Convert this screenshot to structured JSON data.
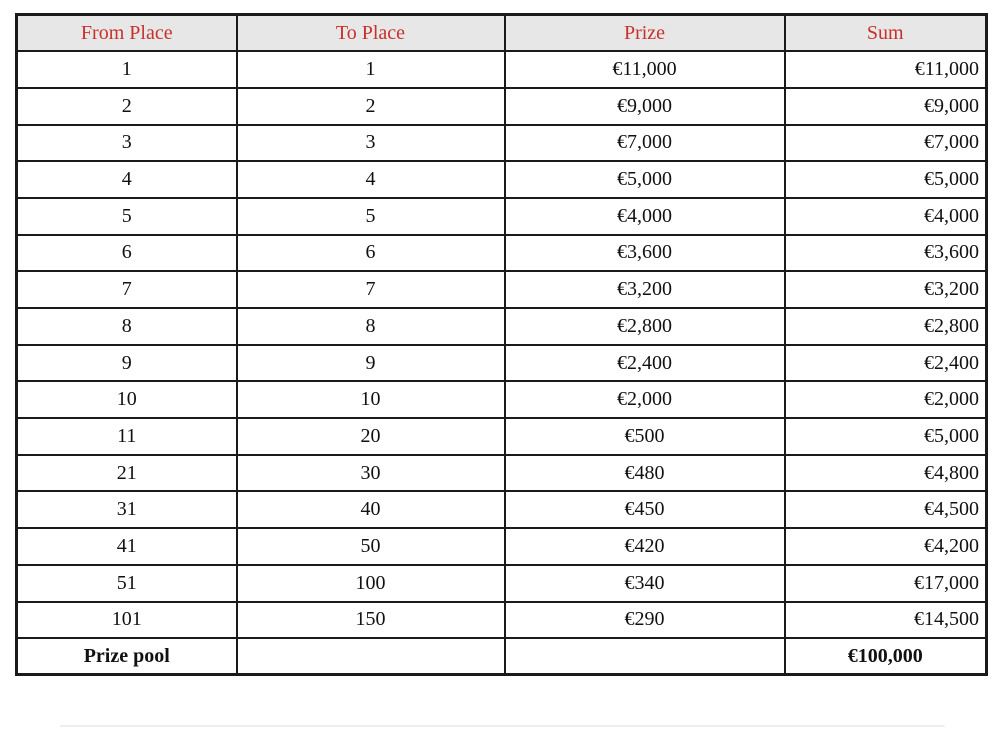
{
  "table": {
    "column_keys": [
      "from-place",
      "to-place",
      "prize",
      "sum"
    ],
    "headers": [
      "From Place",
      "To Place",
      "Prize",
      "Sum"
    ],
    "rows": [
      [
        "1",
        "1",
        "€11,000",
        "€11,000"
      ],
      [
        "2",
        "2",
        "€9,000",
        "€9,000"
      ],
      [
        "3",
        "3",
        "€7,000",
        "€7,000"
      ],
      [
        "4",
        "4",
        "€5,000",
        "€5,000"
      ],
      [
        "5",
        "5",
        "€4,000",
        "€4,000"
      ],
      [
        "6",
        "6",
        "€3,600",
        "€3,600"
      ],
      [
        "7",
        "7",
        "€3,200",
        "€3,200"
      ],
      [
        "8",
        "8",
        "€2,800",
        "€2,800"
      ],
      [
        "9",
        "9",
        "€2,400",
        "€2,400"
      ],
      [
        "10",
        "10",
        "€2,000",
        "€2,000"
      ],
      [
        "11",
        "20",
        "€500",
        "€5,000"
      ],
      [
        "21",
        "30",
        "€480",
        "€4,800"
      ],
      [
        "31",
        "40",
        "€450",
        "€4,500"
      ],
      [
        "41",
        "50",
        "€420",
        "€4,200"
      ],
      [
        "51",
        "100",
        "€340",
        "€17,000"
      ],
      [
        "101",
        "150",
        "€290",
        "€14,500"
      ]
    ],
    "footer": {
      "label": "Prize pool",
      "to_place": "",
      "prize": "",
      "sum": "€100,000"
    },
    "colors": {
      "header_bg": "#e7e7e7",
      "header_text": "#c8312b",
      "border_color": "#1a1a1a"
    }
  }
}
